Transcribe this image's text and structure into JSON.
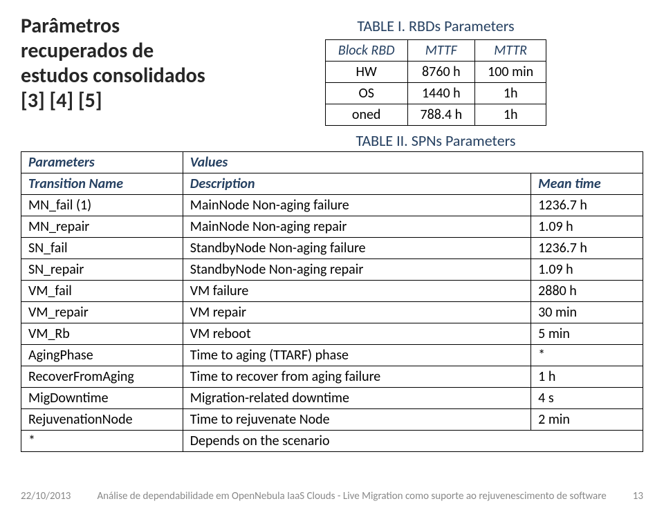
{
  "heading": "Parâmetros recuperados de estudos consolidados [3] [4] [5]",
  "table1": {
    "caption": "TABLE I.  RBDs Parameters",
    "headers": [
      "Block RBD",
      "MTTF",
      "MTTR"
    ],
    "rows": [
      [
        "HW",
        "8760 h",
        "100 min"
      ],
      [
        "OS",
        "1440 h",
        "1h"
      ],
      [
        "oned",
        "788.4 h",
        "1h"
      ]
    ]
  },
  "table2": {
    "caption": "TABLE II.  SPNs Parameters",
    "header_row1": [
      "Parameters",
      "Values"
    ],
    "header_row2": [
      "Transition Name",
      "Description",
      "Mean time"
    ],
    "rows": [
      [
        "MN_fail (1)",
        "MainNode Non-aging failure",
        "1236.7 h"
      ],
      [
        "MN_repair",
        "MainNode Non-aging repair",
        "1.09 h"
      ],
      [
        "SN_fail",
        "StandbyNode Non-aging failure",
        "1236.7 h"
      ],
      [
        "SN_repair",
        "StandbyNode Non-aging repair",
        "1.09 h"
      ],
      [
        "VM_fail",
        "VM failure",
        "2880 h"
      ],
      [
        "VM_repair",
        "VM repair",
        "30 min"
      ],
      [
        "VM_Rb",
        "VM reboot",
        "5 min"
      ],
      [
        "AgingPhase",
        "Time to aging (TTARF) phase",
        "*"
      ],
      [
        "RecoverFromAging",
        "Time to recover from aging failure",
        "1 h"
      ],
      [
        "MigDowntime",
        "Migration-related downtime",
        "4 s"
      ],
      [
        "RejuvenationNode",
        "Time to rejuvenate Node",
        "2 min"
      ],
      [
        "*",
        "Depends on the scenario",
        ""
      ]
    ]
  },
  "footer": {
    "date": "22/10/2013",
    "title": "Análise de dependabilidade em OpenNebula IaaS Clouds - Live Migration como suporte ao rejuvenescimento de software",
    "page": "13"
  },
  "colors": {
    "heading": "#262626",
    "caption": "#254061",
    "border": "#000000",
    "footer": "#898989",
    "background": "#ffffff"
  }
}
